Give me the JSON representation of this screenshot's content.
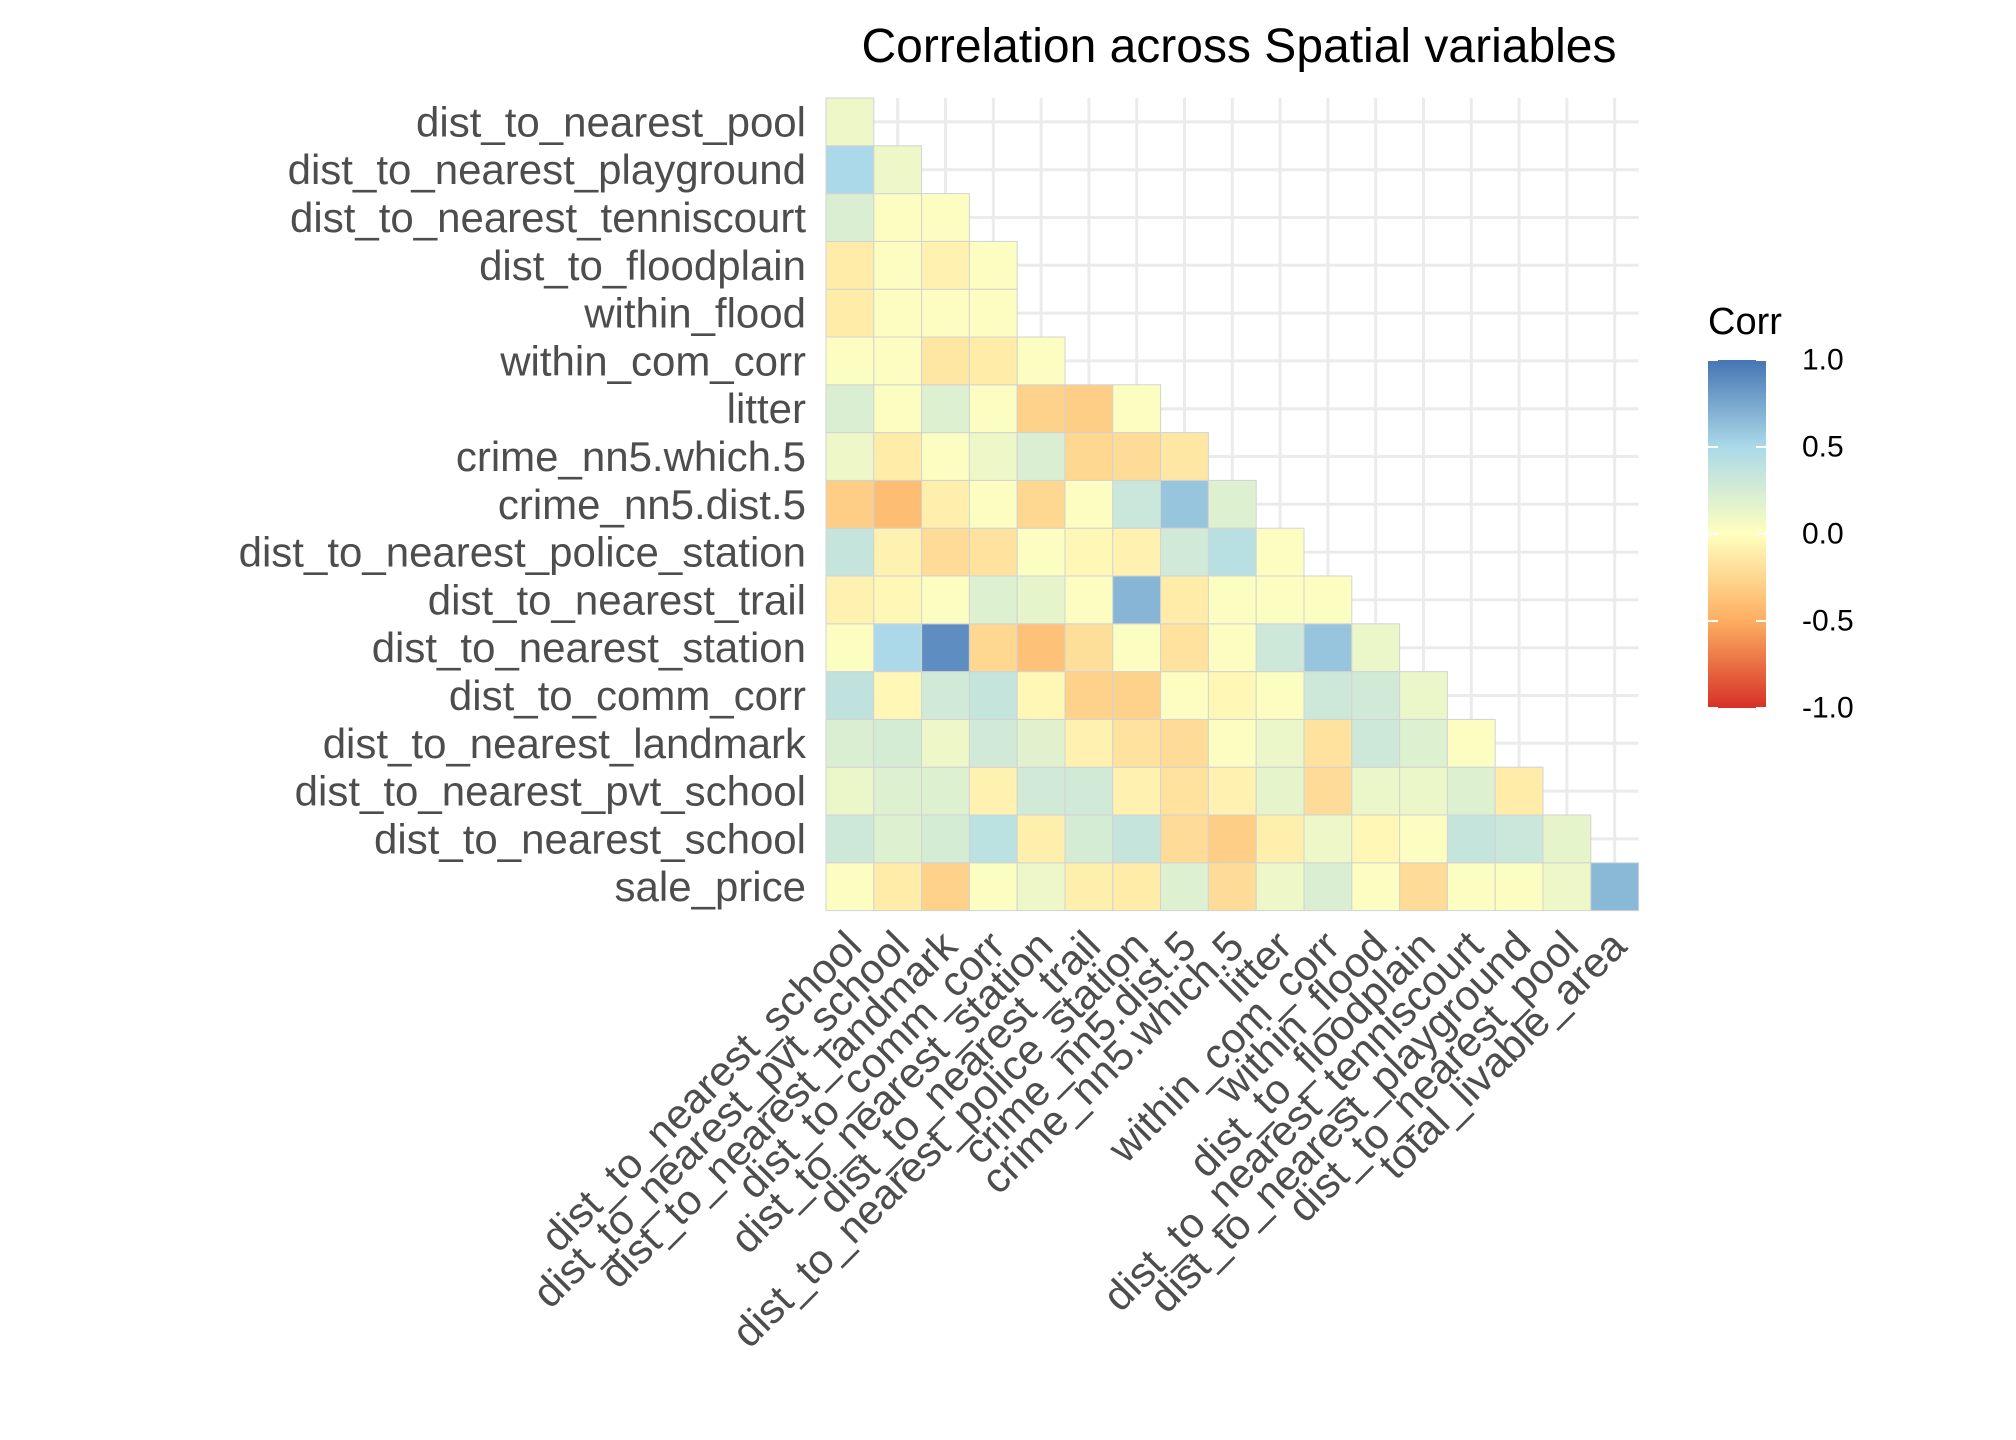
{
  "chart_data": {
    "type": "heatmap",
    "title": "Correlation across Spatial variables",
    "legend": {
      "title": "Corr",
      "placement": "right",
      "range": [
        -1,
        1
      ],
      "ticks": [
        1.0,
        0.5,
        0.0,
        -0.5,
        -1.0
      ],
      "tick_labels": [
        "1.0",
        "0.5",
        "0.0",
        "-0.5",
        "-1.0"
      ],
      "colors": [
        "#d73027",
        "#fdae61",
        "#ffffbf",
        "#abd9e9",
        "#4575b4"
      ]
    },
    "grid": true,
    "x_labels": [
      "dist_to_nearest_school",
      "dist_to_nearest_pvt_school",
      "dist_to_nearest_landmark",
      "dist_to_comm_corr",
      "dist_to_nearest_station",
      "dist_to_nearest_trail",
      "dist_to_nearest_police_station",
      "crime_nn5.dist.5",
      "crime_nn5.which.5",
      "litter",
      "within_com_corr",
      "within_flood",
      "dist_to_floodplain",
      "dist_to_nearest_tenniscourt",
      "dist_to_nearest_playground",
      "dist_to_nearest_pool",
      "total_livable_area"
    ],
    "y_labels": [
      "sale_price",
      "dist_to_nearest_school",
      "dist_to_nearest_pvt_school",
      "dist_to_nearest_landmark",
      "dist_to_comm_corr",
      "dist_to_nearest_station",
      "dist_to_nearest_trail",
      "dist_to_nearest_police_station",
      "crime_nn5.dist.5",
      "crime_nn5.which.5",
      "litter",
      "within_com_corr",
      "within_flood",
      "dist_to_floodplain",
      "dist_to_nearest_tenniscourt",
      "dist_to_nearest_playground",
      "dist_to_nearest_pool"
    ],
    "values": [
      [
        0.02,
        -0.12,
        -0.28,
        0.02,
        0.1,
        -0.1,
        -0.12,
        0.2,
        -0.22,
        0.1,
        0.22,
        0.02,
        -0.22,
        0.02,
        0.02,
        0.1,
        0.66
      ],
      [
        0.3,
        0.2,
        0.25,
        0.4,
        -0.1,
        0.25,
        0.35,
        -0.22,
        -0.3,
        -0.1,
        0.1,
        -0.05,
        0.02,
        0.35,
        0.32,
        0.15,
        null
      ],
      [
        0.12,
        0.2,
        0.2,
        -0.08,
        0.28,
        0.28,
        -0.08,
        -0.18,
        -0.08,
        0.15,
        -0.22,
        0.12,
        0.12,
        0.2,
        -0.12,
        null,
        null
      ],
      [
        0.22,
        0.25,
        0.1,
        0.28,
        0.18,
        -0.08,
        -0.18,
        -0.22,
        0.02,
        0.12,
        -0.18,
        0.3,
        0.2,
        0.02,
        null,
        null,
        null
      ],
      [
        0.38,
        -0.05,
        0.28,
        0.35,
        -0.05,
        -0.28,
        -0.28,
        0.02,
        -0.05,
        0.02,
        0.3,
        0.28,
        0.12,
        null,
        null,
        null,
        null
      ],
      [
        0.02,
        0.5,
        0.88,
        -0.25,
        -0.38,
        -0.2,
        0.02,
        -0.18,
        0.02,
        0.3,
        0.6,
        0.12,
        null,
        null,
        null,
        null,
        null
      ],
      [
        -0.08,
        -0.05,
        0.02,
        0.2,
        0.15,
        0.02,
        0.68,
        -0.12,
        0.02,
        0.02,
        0.02,
        null,
        null,
        null,
        null,
        null,
        null
      ],
      [
        0.35,
        -0.08,
        -0.22,
        -0.18,
        0.02,
        -0.05,
        -0.08,
        0.28,
        0.42,
        0.02,
        null,
        null,
        null,
        null,
        null,
        null,
        null
      ],
      [
        -0.3,
        -0.4,
        -0.1,
        0.02,
        -0.25,
        0.02,
        0.32,
        0.6,
        0.2,
        null,
        null,
        null,
        null,
        null,
        null,
        null,
        null
      ],
      [
        0.1,
        -0.12,
        0.02,
        0.1,
        0.22,
        -0.25,
        -0.22,
        -0.15,
        null,
        null,
        null,
        null,
        null,
        null,
        null,
        null,
        null
      ],
      [
        0.22,
        0.02,
        0.2,
        0.02,
        -0.28,
        -0.3,
        0.02,
        null,
        null,
        null,
        null,
        null,
        null,
        null,
        null,
        null,
        null
      ],
      [
        0.02,
        0.02,
        -0.15,
        -0.12,
        0.02,
        null,
        null,
        null,
        null,
        null,
        null,
        null,
        null,
        null,
        null,
        null,
        null
      ],
      [
        -0.12,
        0.02,
        0.02,
        0.02,
        null,
        null,
        null,
        null,
        null,
        null,
        null,
        null,
        null,
        null,
        null,
        null,
        null
      ],
      [
        -0.12,
        0.02,
        -0.08,
        0.02,
        null,
        null,
        null,
        null,
        null,
        null,
        null,
        null,
        null,
        null,
        null,
        null,
        null
      ],
      [
        0.22,
        0.02,
        0.02,
        null,
        null,
        null,
        null,
        null,
        null,
        null,
        null,
        null,
        null,
        null,
        null,
        null,
        null
      ],
      [
        0.5,
        0.1,
        null,
        null,
        null,
        null,
        null,
        null,
        null,
        null,
        null,
        null,
        null,
        null,
        null,
        null,
        null
      ],
      [
        0.1,
        null,
        null,
        null,
        null,
        null,
        null,
        null,
        null,
        null,
        null,
        null,
        null,
        null,
        null,
        null,
        null
      ]
    ]
  }
}
